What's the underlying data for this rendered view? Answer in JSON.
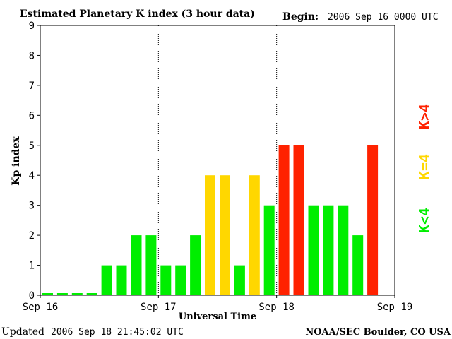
{
  "header": {
    "title": "Estimated Planetary K index (3 hour data)",
    "begin_label": "Begin:",
    "begin_value": "2006 Sep 16 0000 UTC"
  },
  "footer": {
    "updated_label": "Updated",
    "updated_value": "2006 Sep 18 21:45:02 UTC",
    "source": "NOAA/SEC Boulder, CO USA"
  },
  "legend": [
    {
      "label": "K<4",
      "color": "#00ee00"
    },
    {
      "label": "K=4",
      "color": "#ffd700"
    },
    {
      "label": "K>4",
      "color": "#ff2200"
    }
  ],
  "colors": {
    "low": "#00ee00",
    "moderate": "#ffd700",
    "storm": "#ff2200"
  },
  "chart_data": {
    "type": "bar",
    "title": "Estimated Planetary K index (3 hour data)",
    "xlabel": "Universal Time",
    "ylabel": "Kp index",
    "ylim": [
      0,
      9
    ],
    "yticks": [
      "0",
      "1",
      "2",
      "3",
      "4",
      "5",
      "6",
      "7",
      "8",
      "9"
    ],
    "xticks": [
      "Sep 16",
      "Sep 17",
      "Sep 18",
      "Sep 19"
    ],
    "day_dividers": [
      "Sep 17",
      "Sep 18"
    ],
    "bar_interval_hours": 3,
    "values": [
      0,
      0,
      0,
      0,
      1,
      1,
      2,
      2,
      1,
      1,
      2,
      4,
      4,
      1,
      4,
      3,
      5,
      5,
      3,
      3,
      3,
      2,
      5
    ],
    "grid": false
  }
}
